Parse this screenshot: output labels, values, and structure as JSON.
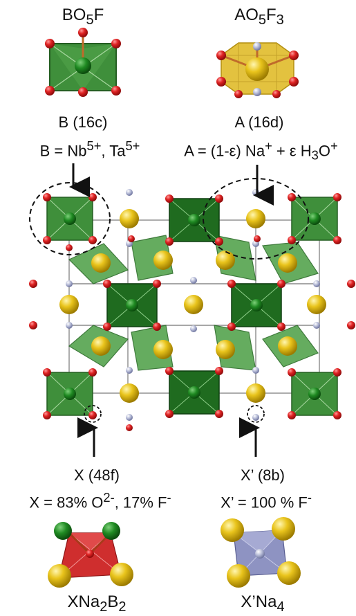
{
  "top_left": {
    "formula_html": "BO<sub>5</sub>F",
    "site": "B (16c)",
    "definition_html": "B = Nb<sup>5+</sup>, Ta<sup>5+</sup>"
  },
  "top_right": {
    "formula_html": "AO<sub>5</sub>F<sub>3</sub>",
    "site": "A (16d)",
    "definition_html": "A = (1-ε) Na<sup>+</sup> + ε H<sub>3</sub>O<sup>+</sup>"
  },
  "bottom_left": {
    "site": "X (48f)",
    "definition_html": "X = 83% O<sup>2-</sup>, 17% F<sup>-</sup>",
    "formula_html": "XNa<sub>2</sub>B<sub>2</sub>"
  },
  "bottom_right": {
    "site": "X’ (8b)",
    "definition_html": "X’ = 100 % F<sup>-</sup>",
    "formula_html": "X’Na<sub>4</sub>"
  },
  "colors": {
    "octahedron_green": "#3f8f3b",
    "octahedron_dark": "#1f6b1f",
    "oxygen_red": "#d61f1f",
    "fluorine_grey": "#9aa0c8",
    "sodium_yellow": "#e7c21c",
    "x_polyhedron_red": "#cf2e2e",
    "xprime_polyhedron_blue": "#8e93c2"
  }
}
